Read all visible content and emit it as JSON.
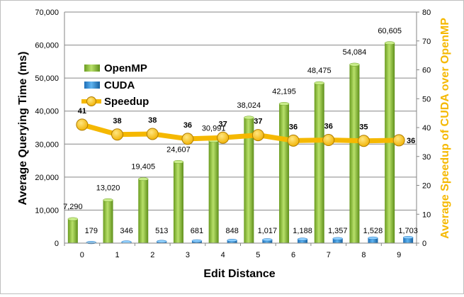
{
  "chart_data": {
    "type": "bar",
    "categories": [
      "0",
      "1",
      "2",
      "3",
      "4",
      "5",
      "6",
      "7",
      "8",
      "9"
    ],
    "series": [
      {
        "name": "OpenMP",
        "type": "bar",
        "axis": "left",
        "color": "#8cc63f",
        "values": [
          7290,
          13020,
          19405,
          24607,
          30991,
          38024,
          42195,
          48475,
          54084,
          60605
        ],
        "labels": [
          "7,290",
          "13,020",
          "19,405",
          "24,607",
          "30,991",
          "38,024",
          "42,195",
          "48,475",
          "54,084",
          "60,605"
        ]
      },
      {
        "name": "CUDA",
        "type": "bar",
        "axis": "left",
        "color": "#2e8fd9",
        "values": [
          179,
          346,
          513,
          681,
          848,
          1017,
          1188,
          1357,
          1528,
          1703
        ],
        "labels": [
          "179",
          "346",
          "513",
          "681",
          "848",
          "1,017",
          "1,188",
          "1,357",
          "1,528",
          "1,703"
        ]
      },
      {
        "name": "Speedup",
        "type": "line",
        "axis": "right",
        "color": "#f5b800",
        "values": [
          41,
          38,
          38,
          36,
          37,
          37,
          36,
          36,
          35,
          36
        ],
        "plot_values": [
          41,
          37.6,
          37.8,
          36.1,
          36.5,
          37.4,
          35.5,
          35.7,
          35.4,
          35.6
        ],
        "labels": [
          "41",
          "38",
          "38",
          "36",
          "37",
          "37",
          "36",
          "36",
          "35",
          "36"
        ]
      }
    ],
    "xlabel": "Edit Distance",
    "ylabel": "Average Querying Time (ms)",
    "y2label": "Average Speedup of CUDA over OpenMP",
    "ylim": [
      0,
      70000
    ],
    "y2lim": [
      0,
      80
    ],
    "yticks": [
      "0",
      "10,000",
      "20,000",
      "30,000",
      "40,000",
      "50,000",
      "60,000",
      "70,000"
    ],
    "y2ticks": [
      "0",
      "10",
      "20",
      "30",
      "40",
      "50",
      "60",
      "70",
      "80"
    ],
    "grid": true,
    "legend_placement": "top-left",
    "colors": {
      "y2title": "#f5b800"
    }
  }
}
